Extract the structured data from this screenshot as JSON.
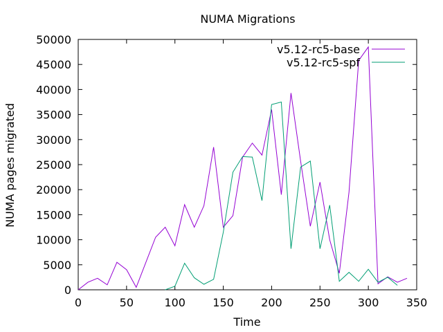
{
  "chart_data": {
    "type": "line",
    "title": "NUMA Migrations",
    "xlabel": "Time",
    "ylabel": "NUMA pages migrated",
    "xlim": [
      0,
      350
    ],
    "ylim": [
      0,
      50000
    ],
    "x_ticks": [
      0,
      50,
      100,
      150,
      200,
      250,
      300,
      350
    ],
    "y_ticks": [
      0,
      5000,
      10000,
      15000,
      20000,
      25000,
      30000,
      35000,
      40000,
      45000,
      50000
    ],
    "grid": false,
    "legend_position": "top-right",
    "series": [
      {
        "name": "v5.12-rc5-base",
        "color": "#9400d3",
        "x": [
          0,
          10,
          20,
          30,
          40,
          50,
          60,
          70,
          80,
          90,
          100,
          110,
          120,
          130,
          140,
          150,
          160,
          170,
          180,
          190,
          200,
          210,
          220,
          230,
          240,
          250,
          260,
          270,
          280,
          290,
          300,
          310,
          320,
          330,
          340
        ],
        "y": [
          0,
          1500,
          2300,
          1000,
          5500,
          4000,
          500,
          5500,
          10500,
          12500,
          8800,
          17000,
          12500,
          16800,
          28500,
          12500,
          14800,
          26500,
          29300,
          26900,
          36000,
          19000,
          39300,
          25700,
          12700,
          21500,
          10000,
          3300,
          19500,
          45800,
          48500,
          1200,
          2600,
          1500,
          2300
        ]
      },
      {
        "name": "v5.12-rc5-spf",
        "color": "#009e73",
        "x": [
          90,
          100,
          110,
          120,
          130,
          140,
          150,
          160,
          170,
          180,
          190,
          200,
          210,
          220,
          230,
          240,
          250,
          260,
          270,
          280,
          290,
          300,
          310,
          320,
          330
        ],
        "y": [
          0,
          700,
          5300,
          2400,
          1100,
          2100,
          11500,
          23500,
          26600,
          26500,
          17800,
          37000,
          37500,
          8200,
          24500,
          25700,
          8200,
          16900,
          1700,
          3500,
          1700,
          4100,
          1500,
          2500,
          900
        ]
      }
    ]
  }
}
